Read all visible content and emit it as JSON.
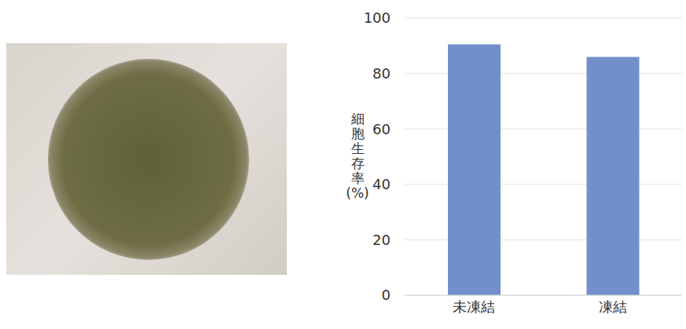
{
  "chart_data": {
    "type": "bar",
    "y_label": "細胞生存率(%)",
    "categories": [
      "未凍結",
      "凍結"
    ],
    "values": [
      90.5,
      86
    ],
    "color": "#7190cb",
    "ylim": [
      0,
      100
    ],
    "yticks": [
      0,
      20,
      40,
      60,
      80,
      100
    ],
    "grid": true
  }
}
